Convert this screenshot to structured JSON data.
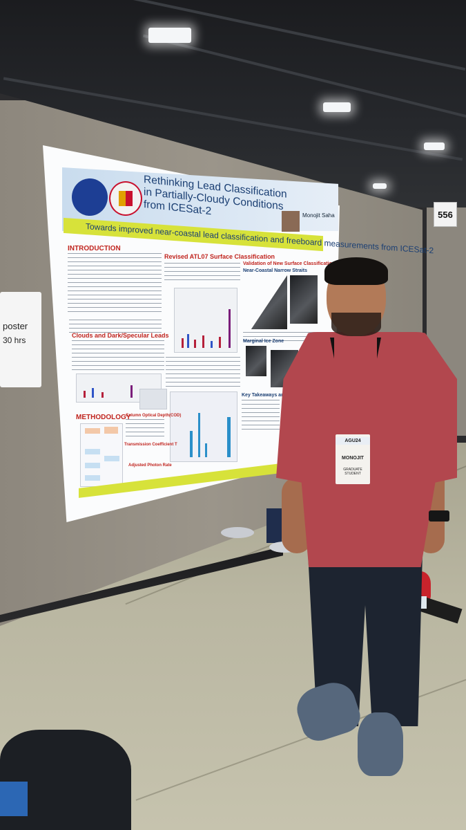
{
  "booth": {
    "number": "556"
  },
  "side_sign": {
    "line1": "poster",
    "line2": "30  hrs"
  },
  "poster": {
    "title": "Rethinking Lead Classification in Partially-Cloudy Conditions from ICESat-2",
    "tagline": "Towards improved near-coastal lead classification and freeboard measurements from ICESat-2",
    "author": "Monojit Saha",
    "sections": {
      "introduction": "INTRODUCTION",
      "revised": "Revised ATL07 Surface Classification",
      "validation": "Validation of New Surface Classification",
      "narrow_straits": "Near-Coastal Narrow Straits",
      "clouds": "Clouds and Dark/Specular Leads",
      "methodology": "METHODOLOGY",
      "marginal": "Marginal Ice Zone",
      "key": "Key Takeaways and Future Work",
      "cod": "Column Optical Depth(COD)",
      "transmission": "Transmission Coefficient T",
      "adjusted": "Adjusted Photon Rate"
    }
  },
  "badge": {
    "event": "AGU24",
    "name": "MONOJIT",
    "role": "GRADUATE STUDENT"
  },
  "colors": {
    "shirt": "#b2474e",
    "poster_accent": "#d7e23a",
    "title_blue": "#1b3f73",
    "section_red": "#c0241e"
  }
}
